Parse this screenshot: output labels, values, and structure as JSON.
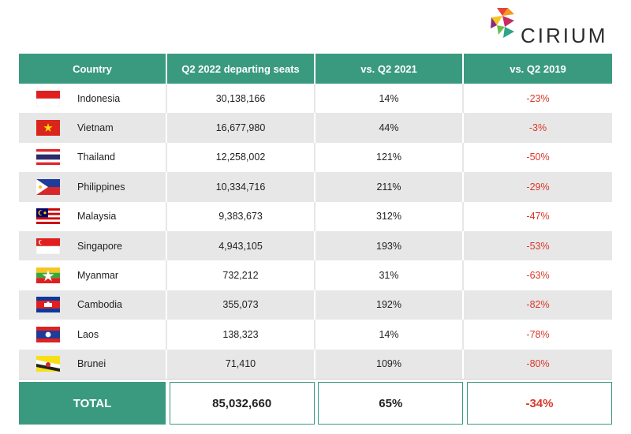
{
  "brand": {
    "name": "CIRIUM"
  },
  "colors": {
    "header": "#3a9a80",
    "negative": "#d9382b",
    "stripe": "#e7e7e7"
  },
  "chart_data": {
    "type": "table",
    "columns": [
      "Country",
      "Q2 2022 departing seats",
      "vs. Q2 2021",
      "vs. Q2 2019"
    ],
    "rows": [
      {
        "flag": "indonesia-flag-icon",
        "country": "Indonesia",
        "seats": "30,138,166",
        "vs2021": "14%",
        "vs2019": "-23%"
      },
      {
        "flag": "vietnam-flag-icon",
        "country": "Vietnam",
        "seats": "16,677,980",
        "vs2021": "44%",
        "vs2019": "-3%"
      },
      {
        "flag": "thailand-flag-icon",
        "country": "Thailand",
        "seats": "12,258,002",
        "vs2021": "121%",
        "vs2019": "-50%"
      },
      {
        "flag": "philippines-flag-icon",
        "country": "Philippines",
        "seats": "10,334,716",
        "vs2021": "211%",
        "vs2019": "-29%"
      },
      {
        "flag": "malaysia-flag-icon",
        "country": "Malaysia",
        "seats": "9,383,673",
        "vs2021": "312%",
        "vs2019": "-47%"
      },
      {
        "flag": "singapore-flag-icon",
        "country": "Singapore",
        "seats": "4,943,105",
        "vs2021": "193%",
        "vs2019": "-53%"
      },
      {
        "flag": "myanmar-flag-icon",
        "country": "Myanmar",
        "seats": "732,212",
        "vs2021": "31%",
        "vs2019": "-63%"
      },
      {
        "flag": "cambodia-flag-icon",
        "country": "Cambodia",
        "seats": "355,073",
        "vs2021": "192%",
        "vs2019": "-82%"
      },
      {
        "flag": "laos-flag-icon",
        "country": "Laos",
        "seats": "138,323",
        "vs2021": "14%",
        "vs2019": "-78%"
      },
      {
        "flag": "brunei-flag-icon",
        "country": "Brunei",
        "seats": "71,410",
        "vs2021": "109%",
        "vs2019": "-80%"
      }
    ],
    "total": {
      "label": "TOTAL",
      "seats": "85,032,660",
      "vs2021": "65%",
      "vs2019": "-34%"
    }
  }
}
